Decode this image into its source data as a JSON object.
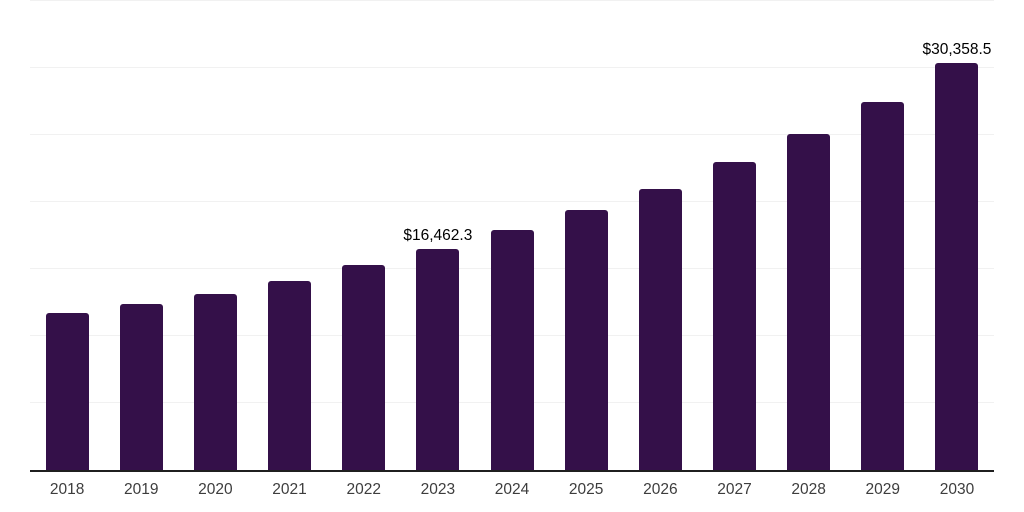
{
  "chart_data": {
    "type": "bar",
    "title": "",
    "categories": [
      "2018",
      "2019",
      "2020",
      "2021",
      "2022",
      "2023",
      "2024",
      "2025",
      "2026",
      "2027",
      "2028",
      "2029",
      "2030"
    ],
    "values": [
      11700,
      12400,
      13100,
      14100,
      15300,
      16462.3,
      17900,
      19400,
      21000,
      23000,
      25100,
      27500,
      30358.5
    ],
    "value_labels": {
      "2023": "$16,462.3",
      "2030": "$30,358.5"
    },
    "xlabel": "",
    "ylabel": "",
    "ylim": [
      0,
      35000
    ],
    "gridline_step": 5000,
    "grid": true,
    "legend": false,
    "colors": {
      "bar": "#341049",
      "gridline": "#f1f1f1",
      "axis_line": "#1f1f1f",
      "tick_label": "#3d3d3d",
      "value_label": "#000000",
      "background": "#ffffff"
    }
  }
}
